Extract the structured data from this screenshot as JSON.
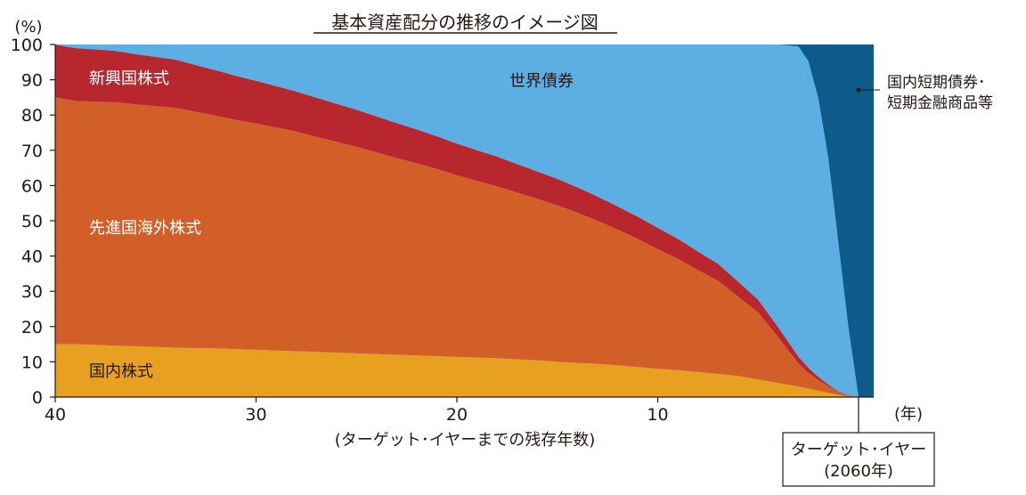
{
  "chart_data": {
    "type": "area",
    "stacked": true,
    "title": "基本資産配分の推移のイメージ図",
    "y_unit_label": "(%)",
    "x_unit_label": "(年)",
    "xlabel": "(ターゲット･イヤーまでの残存年数)",
    "ylim": [
      0,
      100
    ],
    "xlim": [
      40,
      0
    ],
    "x_ticks": [
      40,
      30,
      20,
      10
    ],
    "y_ticks": [
      0,
      10,
      20,
      30,
      40,
      50,
      60,
      70,
      80,
      90,
      100
    ],
    "grid": false,
    "x": [
      40,
      39,
      38,
      37,
      36,
      35,
      34,
      33,
      32,
      31,
      30,
      29,
      28,
      27,
      26,
      25,
      24,
      23,
      22,
      21,
      20,
      19,
      18,
      17,
      16,
      15,
      14,
      13,
      12,
      11,
      10,
      9,
      8,
      7,
      6,
      5,
      4,
      3,
      2.5,
      2,
      1.5,
      1,
      0.5,
      0
    ],
    "series": [
      {
        "name": "国内株式",
        "color": "#E8A020",
        "values": [
          15,
          15,
          14.8,
          14.6,
          14.4,
          14.2,
          14,
          13.9,
          13.8,
          13.6,
          13.4,
          13.2,
          13,
          12.8,
          12.6,
          12.4,
          12.2,
          12,
          11.8,
          11.6,
          11.4,
          11.2,
          11,
          10.7,
          10.4,
          10,
          9.7,
          9.4,
          9,
          8.5,
          8,
          7.6,
          7.1,
          6.6,
          6,
          5,
          4,
          3,
          2.4,
          1.8,
          1.2,
          0.6,
          0.2,
          0
        ]
      },
      {
        "name": "先進国海外株式",
        "color": "#D15F27",
        "values": [
          70,
          69,
          69,
          69,
          68.6,
          68.3,
          68,
          67,
          66,
          65,
          64.2,
          63.3,
          62.3,
          61,
          59.8,
          58.6,
          57.2,
          55.8,
          54.5,
          53.1,
          51.5,
          50.1,
          48.8,
          47.3,
          45.8,
          44.4,
          42.6,
          40.6,
          38.5,
          36.4,
          34,
          31.6,
          28.9,
          26.4,
          22.5,
          19,
          13,
          6.5,
          4.5,
          3,
          1.8,
          0.8,
          0.3,
          0
        ]
      },
      {
        "name": "新興国株式",
        "color": "#B8272E",
        "values": [
          15,
          15,
          14.8,
          14.6,
          14.3,
          14,
          13.7,
          13.3,
          12.9,
          12.5,
          12.1,
          11.7,
          11.4,
          11.1,
          10.8,
          10.5,
          10.2,
          9.9,
          9.6,
          9.3,
          9,
          8.7,
          8.4,
          8.1,
          7.8,
          7.5,
          7.2,
          6.9,
          6.6,
          6.3,
          6,
          5.7,
          5.3,
          4.8,
          4.3,
          3.6,
          2.8,
          2,
          1.4,
          0.9,
          0.5,
          0.2,
          0.1,
          0
        ]
      },
      {
        "name": "世界債券",
        "color": "#5DAEE2",
        "values": [
          0,
          1,
          1.4,
          1.8,
          2.7,
          3.5,
          4.3,
          5.8,
          7.3,
          8.9,
          10.3,
          11.8,
          13.3,
          15.1,
          16.8,
          18.5,
          20.4,
          22.3,
          24.1,
          26,
          28.1,
          30,
          31.8,
          33.9,
          36,
          38.1,
          40.5,
          43.1,
          45.9,
          48.8,
          52,
          55.1,
          58.7,
          62.2,
          67.2,
          72.4,
          80.2,
          88,
          87,
          79,
          64,
          42,
          19,
          0
        ]
      },
      {
        "name": "国内短期債券･短期金融商品等",
        "label_lines": [
          "国内短期債券･",
          "短期金融商品等"
        ],
        "color": "#0E5A8A",
        "values": [
          0,
          0,
          0,
          0,
          0,
          0,
          0,
          0,
          0,
          0,
          0,
          0,
          0,
          0,
          0,
          0,
          0,
          0,
          0,
          0,
          0,
          0,
          0,
          0,
          0,
          0,
          0,
          0,
          0,
          0,
          0,
          0,
          0,
          0,
          0,
          0,
          0,
          0.5,
          4.7,
          15.3,
          32.5,
          56.4,
          80.4,
          100
        ]
      }
    ],
    "target_box": {
      "lines": [
        "ターゲット･イヤー",
        "(2060年)"
      ]
    }
  }
}
